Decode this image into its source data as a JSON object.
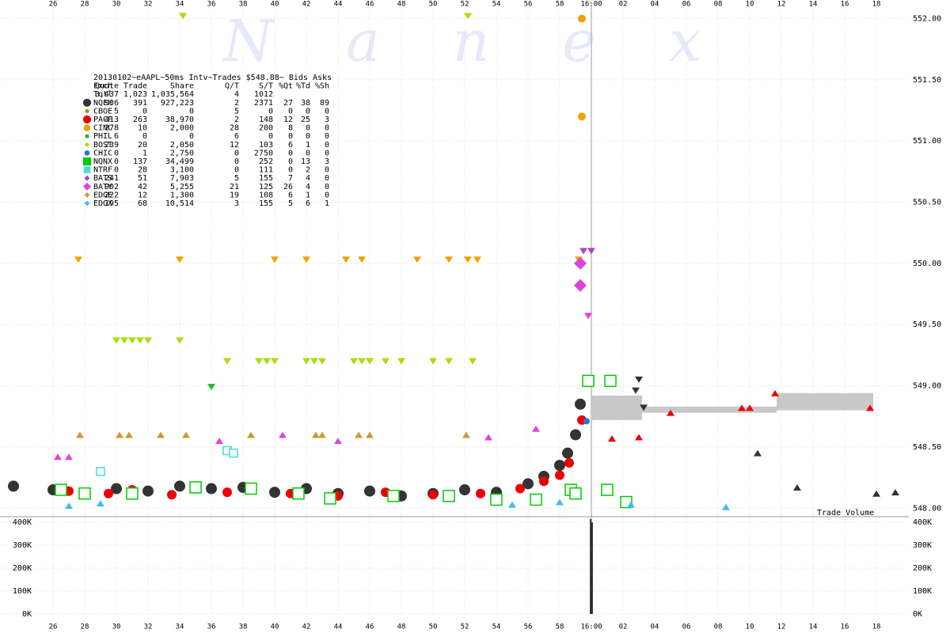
{
  "chart_data": {
    "type": "scatter",
    "watermark": "Nanex",
    "annotation": "Trade Volume",
    "grid": true,
    "xlim": [
      22.65,
      80.05
    ],
    "xticks": [
      26,
      28,
      30,
      32,
      34,
      36,
      38,
      40,
      42,
      44,
      46,
      48,
      50,
      52,
      54,
      56,
      58,
      {
        "value": 60,
        "label": "16:00"
      },
      {
        "value": 62,
        "label": "02"
      },
      {
        "value": 64,
        "label": "04"
      },
      {
        "value": 66,
        "label": "06"
      },
      {
        "value": 68,
        "label": "08"
      },
      {
        "value": 70,
        "label": "10"
      },
      {
        "value": 72,
        "label": "12"
      },
      {
        "value": 74,
        "label": "14"
      },
      {
        "value": 76,
        "label": "16"
      },
      {
        "value": 78,
        "label": "18"
      }
    ],
    "ylim": [
      547.95,
      552.1
    ],
    "yticks": [
      {
        "value": 548,
        "label": "548.00"
      },
      {
        "value": 548.5,
        "label": "548.50"
      },
      {
        "value": 549,
        "label": "549.00"
      },
      {
        "value": 549.5,
        "label": "549.50"
      },
      {
        "value": 550,
        "label": "550.00"
      },
      {
        "value": 550.5,
        "label": "550.50"
      },
      {
        "value": 551,
        "label": "551.00"
      },
      {
        "value": 551.5,
        "label": "551.50"
      },
      {
        "value": 552,
        "label": "552.00"
      }
    ],
    "y2lim": [
      0,
      414000
    ],
    "y2ticks": [
      {
        "value": 0,
        "label": "0K"
      },
      {
        "value": 100000,
        "label": "100K"
      },
      {
        "value": 200000,
        "label": "200K"
      },
      {
        "value": 300000,
        "label": "300K"
      },
      {
        "value": 400000,
        "label": "400K"
      }
    ],
    "volume": {
      "color": "#000000",
      "x": [
        59.95,
        60.05
      ],
      "values": [
        414000,
        400000
      ]
    },
    "spread": {
      "color": "#c8c8c8",
      "x": [
        60,
        63.2,
        63.2,
        71.7,
        71.7,
        77.8
      ],
      "low": [
        548.72,
        548.72,
        548.78,
        548.78,
        548.8,
        548.8
      ],
      "high": [
        548.92,
        548.92,
        548.83,
        548.83,
        548.94,
        548.94
      ]
    },
    "table": {
      "title": "20130102~eAAPL~50ms Intv~Trades $548.88~ Bids  Asks",
      "header": [
        "Exch",
        "Quote",
        "Trade",
        "Share",
        "Q/T",
        "S/T",
        "%Qt",
        "%Td",
        "%Sh"
      ],
      "total": {
        "label": "Totl",
        "stats": [
          "3,437",
          "1,023",
          "1,035,564",
          "4",
          "1012"
        ]
      }
    },
    "series": [
      {
        "name": "NQEX",
        "color": "#333333",
        "marker": "circle",
        "size": 7,
        "stats": [
          "936",
          "391",
          "927,223",
          "2",
          "2371",
          "27",
          "38",
          "89"
        ],
        "x": [
          23.5,
          26,
          28,
          30,
          32,
          34,
          36,
          38,
          40,
          42,
          44,
          46,
          48,
          50,
          52,
          54,
          56,
          57,
          58,
          58.5,
          59,
          59.3,
          59.8
        ],
        "values": [
          548.18,
          548.15,
          548.12,
          548.16,
          548.14,
          548.18,
          548.16,
          548.17,
          548.13,
          548.16,
          548.12,
          548.14,
          548.1,
          548.12,
          548.15,
          548.13,
          548.2,
          548.26,
          548.35,
          548.45,
          548.6,
          548.85,
          549.04
        ],
        "bids": {
          "x": [
            70.5,
            73,
            78,
            79.2
          ],
          "values": [
            548.45,
            548.17,
            548.12,
            548.13
          ]
        },
        "asks": {
          "x": [
            62.8,
            63,
            63.3
          ],
          "values": [
            548.96,
            549.05,
            548.82
          ]
        }
      },
      {
        "name": "CBOE",
        "color": "#999900",
        "marker": "circle",
        "size": 3,
        "stats": [
          "5",
          "0",
          "0",
          "5",
          "0",
          "0",
          "0",
          "0"
        ]
      },
      {
        "name": "PACF",
        "color": "#ee0000",
        "marker": "circle",
        "size": 6,
        "stats": [
          "413",
          "263",
          "38,970",
          "2",
          "148",
          "12",
          "25",
          "3"
        ],
        "x": [
          27,
          29.5,
          31,
          33.5,
          37,
          41,
          44,
          47,
          50,
          53,
          55.5,
          57,
          58,
          58.6,
          59.4
        ],
        "values": [
          548.14,
          548.12,
          548.15,
          548.11,
          548.13,
          548.12,
          548.1,
          548.13,
          548.11,
          548.12,
          548.16,
          548.22,
          548.27,
          548.37,
          548.72
        ],
        "bids": {
          "x": [
            61.3,
            63,
            65,
            69.5,
            70,
            71.6,
            77.6
          ],
          "values": [
            548.57,
            548.58,
            548.78,
            548.82,
            548.82,
            548.94,
            548.82
          ]
        }
      },
      {
        "name": "CINC",
        "color": "#f0a000",
        "marker": "circle",
        "size": 5,
        "stats": [
          "278",
          "10",
          "2,000",
          "28",
          "200",
          "8",
          "0",
          "0"
        ],
        "x": [
          59.4,
          59.4
        ],
        "values": [
          552.0,
          551.2
        ],
        "asks": {
          "x": [
            27.6,
            34,
            40,
            42,
            44.5,
            45.5,
            49,
            51,
            52.2,
            52.8,
            59.2
          ],
          "values": [
            550.03,
            550.03,
            550.03,
            550.03,
            550.03,
            550.03,
            550.03,
            550.03,
            550.03,
            550.03,
            550.03
          ]
        }
      },
      {
        "name": "PHIL",
        "color": "#22bb22",
        "marker": "circle",
        "size": 3,
        "stats": [
          "6",
          "0",
          "0",
          "6",
          "0",
          "0",
          "0",
          "0"
        ],
        "asks": {
          "x": [
            36
          ],
          "values": [
            548.99
          ]
        }
      },
      {
        "name": "BOST",
        "color": "#aadd00",
        "marker": "circle",
        "size": 3,
        "stats": [
          "239",
          "20",
          "2,050",
          "12",
          "103",
          "6",
          "1",
          "0"
        ],
        "asks": {
          "x": [
            30,
            30.5,
            31,
            31.5,
            32,
            34,
            34.2,
            52.2,
            37,
            39,
            39.5,
            40,
            42,
            42.5,
            43,
            45,
            45.5,
            46,
            47,
            48,
            50,
            51,
            52.5
          ],
          "values": [
            549.37,
            549.37,
            549.37,
            549.37,
            549.37,
            549.37,
            552.02,
            552.02,
            549.2,
            549.2,
            549.2,
            549.2,
            549.2,
            549.2,
            549.2,
            549.2,
            549.2,
            549.2,
            549.2,
            549.2,
            549.2,
            549.2,
            549.2
          ]
        }
      },
      {
        "name": "CHIC",
        "color": "#1e7ec8",
        "marker": "circle",
        "size": 4,
        "stats": [
          "0",
          "1",
          "2,750",
          "0",
          "2750",
          "0",
          "0",
          "0"
        ],
        "x": [
          59.7
        ],
        "values": [
          548.71
        ]
      },
      {
        "name": "NQNX",
        "color": "#00cc00",
        "marker": "square",
        "size": 7,
        "hollow": true,
        "stats": [
          "0",
          "137",
          "34,499",
          "0",
          "252",
          "0",
          "13",
          "3"
        ],
        "x": [
          26.5,
          28,
          31,
          35,
          38.5,
          41.5,
          43.5,
          47.5,
          51,
          54,
          56.5,
          58.7,
          59,
          59.8,
          61,
          61.2,
          62.2
        ],
        "values": [
          548.15,
          548.12,
          548.12,
          548.17,
          548.16,
          548.12,
          548.08,
          548.1,
          548.1,
          548.07,
          548.07,
          548.15,
          548.12,
          549.04,
          548.15,
          549.04,
          548.05
        ]
      },
      {
        "name": "NTRF",
        "color": "#44dddd",
        "marker": "square",
        "size": 5,
        "hollow": true,
        "stats": [
          "0",
          "28",
          "3,100",
          "0",
          "111",
          "0",
          "2",
          "0"
        ],
        "x": [
          29,
          37,
          37.4
        ],
        "values": [
          548.3,
          548.47,
          548.45
        ]
      },
      {
        "name": "BATS",
        "color": "#aa44cc",
        "marker": "diamond",
        "size": 4,
        "stats": [
          "241",
          "51",
          "7,903",
          "5",
          "155",
          "7",
          "4",
          "0"
        ],
        "asks": {
          "x": [
            59.5,
            60
          ],
          "values": [
            550.1,
            550.1
          ]
        }
      },
      {
        "name": "BATY",
        "color": "#dd44dd",
        "marker": "diamond",
        "size": 8,
        "stats": [
          "902",
          "42",
          "5,255",
          "21",
          "125",
          "26",
          "4",
          "0"
        ],
        "x": [
          59.3,
          59.3
        ],
        "values": [
          550.0,
          549.82
        ],
        "bids": {
          "x": [
            26.3,
            27,
            36.5,
            40.5,
            44,
            53.5,
            56.5
          ],
          "values": [
            548.42,
            548.42,
            548.55,
            548.6,
            548.55,
            548.58,
            548.65
          ]
        },
        "asks": {
          "x": [
            59.8
          ],
          "values": [
            549.57
          ]
        }
      },
      {
        "name": "EDGE",
        "color": "#cc9933",
        "marker": "diamond",
        "size": 4,
        "stats": [
          "222",
          "12",
          "1,300",
          "19",
          "108",
          "6",
          "1",
          "0"
        ],
        "bids": {
          "x": [
            27.7,
            30.2,
            30.8,
            32.8,
            34.4,
            38.5,
            42.6,
            43,
            45.3,
            46,
            52.1
          ],
          "values": [
            548.6,
            548.6,
            548.6,
            548.6,
            548.6,
            548.6,
            548.6,
            548.6,
            548.6,
            548.6,
            548.6
          ]
        }
      },
      {
        "name": "EDGX",
        "color": "#44bbee",
        "marker": "diamond",
        "size": 4,
        "stats": [
          "195",
          "68",
          "10,514",
          "3",
          "155",
          "5",
          "6",
          "1"
        ],
        "bids": {
          "x": [
            27,
            29,
            55,
            58,
            62.5,
            68.5
          ],
          "values": [
            548.02,
            548.04,
            548.03,
            548.05,
            548.03,
            548.01
          ]
        }
      }
    ]
  }
}
